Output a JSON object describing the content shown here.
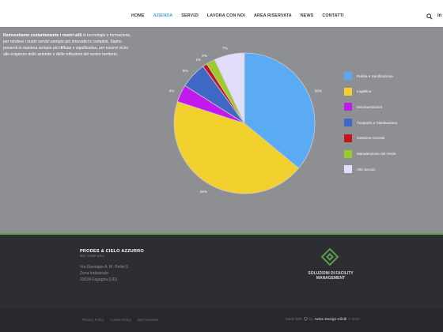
{
  "header": {
    "nav": [
      {
        "label": "HOME"
      },
      {
        "label": "AZIENDA",
        "active": true
      },
      {
        "label": "SERVIZI"
      },
      {
        "label": "LAVORA CON NOI"
      },
      {
        "label": "AREA RISERVATA"
      },
      {
        "label": "NEWS"
      },
      {
        "label": "CONTATTI"
      }
    ],
    "social_icon": "linkedin-icon",
    "social_label": "in"
  },
  "intro": {
    "lead": "Reinvestiamo costantemente i nostri utili",
    "body": " in tecnologie e formazione, per rendere i nostri servizi sempre più innovativi e completi. Siamo presenti in maniera sempre più diffusa e significativa, per essere vicini alle esigenze delle aziende e delle istituzioni del nostro territorio."
  },
  "chart_data": {
    "type": "pie",
    "start_angle_deg": 0,
    "direction": "clockwise",
    "slices": [
      {
        "name": "Pulizie e Sanificazione",
        "value": 36,
        "label": "36%",
        "color": "#5aabf4"
      },
      {
        "name": "Logistica",
        "value": 44,
        "label": "44%",
        "color": "#f2d02e"
      },
      {
        "name": "Movimentazioni",
        "value": 4,
        "label": "4%",
        "color": "#c21aee"
      },
      {
        "name": "Trasporto e Distribuzione",
        "value": 6,
        "label": "6%",
        "color": "#3f67c4"
      },
      {
        "name": "Gestione Accessi",
        "value": 1,
        "label": "1%",
        "color": "#c2151e"
      },
      {
        "name": "Manutenzione del Verde",
        "value": 2,
        "label": "2%",
        "color": "#9ccb2c"
      },
      {
        "name": "Altri Servizi",
        "value": 7,
        "label": "7%",
        "color": "#e1ddfb"
      }
    ]
  },
  "footer": {
    "company": "PRODES & CIELO AZZURRO",
    "company_sub": "SOC. COOP. A R.L.",
    "address": [
      "Via Giuseppe A. M. Rollet 5",
      "Zona Industriale",
      "33034 Fagagna (UD)"
    ],
    "logo_text": "SOLUZIONI DI FACILITY MANAGEMENT",
    "logo_color": "#5f9b4c"
  },
  "subfooter": {
    "links": [
      "Privacy Policy",
      "Cookie Policy",
      "Dati Societari"
    ],
    "credits_prefix": "Made With",
    "credits_by": "by",
    "credits_name": "Aztec Design Clinik",
    "credits_year": "© 2020"
  }
}
